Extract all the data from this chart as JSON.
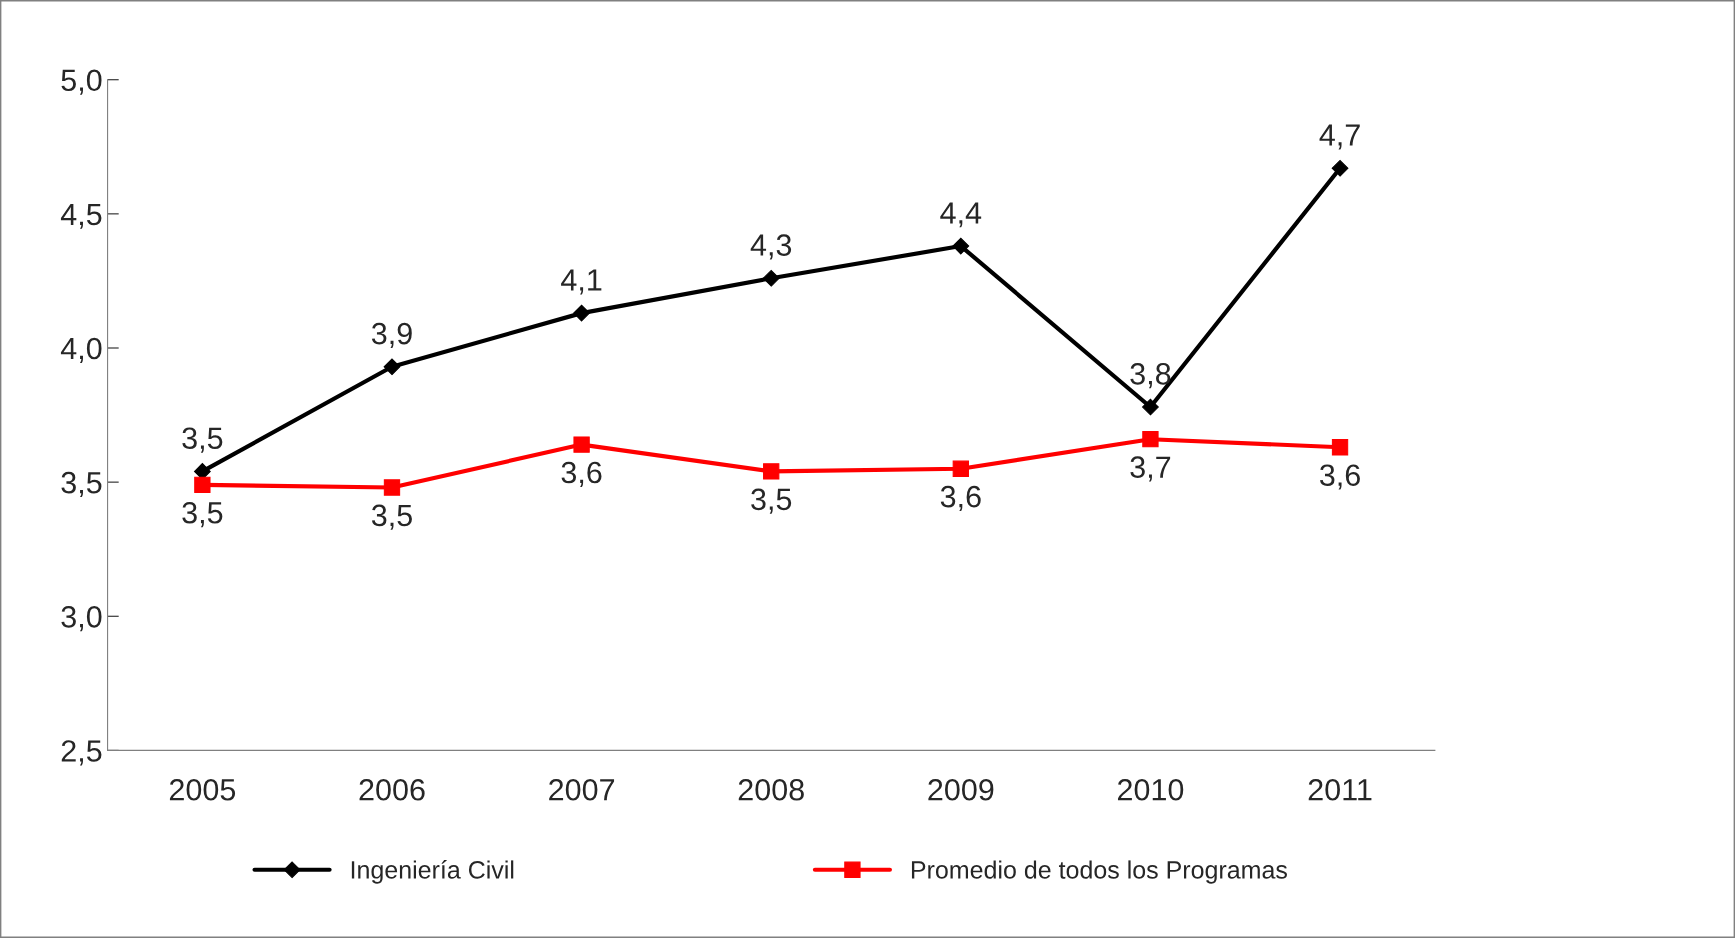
{
  "chart_data": {
    "type": "line",
    "categories": [
      "2005",
      "2006",
      "2007",
      "2008",
      "2009",
      "2010",
      "2011"
    ],
    "series": [
      {
        "name": "Ingeniería Civil",
        "color": "#000000",
        "marker": "diamond",
        "values": [
          3.54,
          3.93,
          4.13,
          4.26,
          4.38,
          3.78,
          4.67
        ],
        "value_labels": [
          "3,5",
          "3,9",
          "4,1",
          "4,3",
          "4,4",
          "3,8",
          "4,7"
        ]
      },
      {
        "name": "Promedio de todos los Programas",
        "color": "#ff0000",
        "marker": "square",
        "values": [
          3.49,
          3.48,
          3.64,
          3.54,
          3.55,
          3.66,
          3.63
        ],
        "value_labels": [
          "3,5",
          "3,5",
          "3,6",
          "3,5",
          "3,6",
          "3,7",
          "3,6"
        ]
      }
    ],
    "ylim": [
      2.5,
      5.0
    ],
    "yticks": [
      {
        "value": 2.5,
        "label": "2,5"
      },
      {
        "value": 3.0,
        "label": "3,0"
      },
      {
        "value": 3.5,
        "label": "3,5"
      },
      {
        "value": 4.0,
        "label": "4,0"
      },
      {
        "value": 4.5,
        "label": "4,5"
      },
      {
        "value": 5.0,
        "label": "5,0"
      }
    ],
    "grid": false,
    "legend": "bottom",
    "line_style": "solid"
  }
}
